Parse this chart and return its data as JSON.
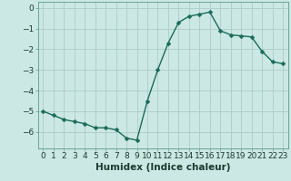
{
  "x": [
    0,
    1,
    2,
    3,
    4,
    5,
    6,
    7,
    8,
    9,
    10,
    11,
    12,
    13,
    14,
    15,
    16,
    17,
    18,
    19,
    20,
    21,
    22,
    23
  ],
  "y": [
    -5.0,
    -5.2,
    -5.4,
    -5.5,
    -5.6,
    -5.8,
    -5.8,
    -5.9,
    -6.3,
    -6.4,
    -4.5,
    -3.0,
    -1.7,
    -0.7,
    -0.4,
    -0.3,
    -0.2,
    -1.1,
    -1.3,
    -1.35,
    -1.4,
    -2.1,
    -2.6,
    -2.7
  ],
  "bg_color": "#cce8e4",
  "grid_color": "#aaccca",
  "line_color": "#1a6b5a",
  "marker_color": "#1a6b5a",
  "xlabel": "Humidex (Indice chaleur)",
  "xlim": [
    -0.5,
    23.5
  ],
  "ylim": [
    -6.8,
    0.3
  ],
  "yticks": [
    0,
    -1,
    -2,
    -3,
    -4,
    -5,
    -6
  ],
  "xticks": [
    0,
    1,
    2,
    3,
    4,
    5,
    6,
    7,
    8,
    9,
    10,
    11,
    12,
    13,
    14,
    15,
    16,
    17,
    18,
    19,
    20,
    21,
    22,
    23
  ],
  "tick_fontsize": 6.5,
  "xlabel_fontsize": 7.5,
  "line_width": 1.0,
  "marker_size": 2.5
}
